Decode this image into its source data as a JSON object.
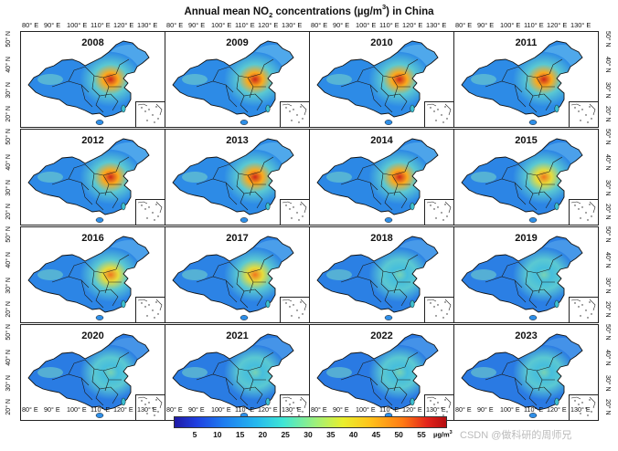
{
  "title": {
    "prefix": "Annual mean NO",
    "sub": "2",
    "mid": " concentrations (µg/m",
    "sup": "3",
    "suffix": ") in China"
  },
  "years": [
    "2008",
    "2009",
    "2010",
    "2011",
    "2012",
    "2013",
    "2014",
    "2015",
    "2016",
    "2017",
    "2018",
    "2019",
    "2020",
    "2021",
    "2022",
    "2023"
  ],
  "lon_ticks": [
    "80° E",
    "90° E",
    "100° E",
    "110° E",
    "120° E",
    "130° E"
  ],
  "lat_ticks": [
    "50° N",
    "40° N",
    "30° N",
    "20° N"
  ],
  "colorbar": {
    "ticks": [
      "5",
      "10",
      "15",
      "20",
      "25",
      "30",
      "35",
      "40",
      "45",
      "50",
      "55"
    ],
    "unit_base": "µg/m",
    "unit_sup": "3",
    "colors": {
      "low": "#1f1aa6",
      "mid": "#3fe6d5",
      "high": "#b50d10"
    }
  },
  "panel_intensity": [
    0.9,
    0.95,
    0.95,
    0.95,
    0.9,
    0.95,
    0.85,
    0.75,
    0.75,
    0.7,
    0.6,
    0.55,
    0.45,
    0.45,
    0.4,
    0.4
  ],
  "watermark": "CSDN @做科研的周师兄"
}
